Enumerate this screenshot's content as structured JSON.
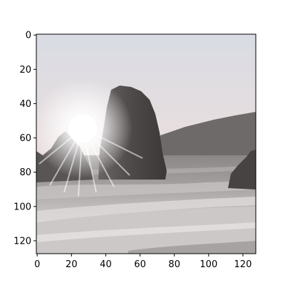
{
  "image": {
    "description_icon": "image-display-axes",
    "pixel_grid": {
      "width": 128,
      "height": 128
    }
  },
  "axes": {
    "x_ticks": [
      "0",
      "20",
      "40",
      "60",
      "80",
      "100",
      "120"
    ],
    "y_ticks": [
      "0",
      "20",
      "40",
      "60",
      "80",
      "100",
      "120"
    ]
  },
  "colors": {
    "sky_top": "#d8dbe3",
    "sky_bottom": "#e8dcdc",
    "sun": "#ffffff",
    "rock": "#4f4a4a",
    "headland": "#6d6868",
    "sea": "#9a9595",
    "foam": "#d9d6d6",
    "sand": "#c8c3c3"
  }
}
